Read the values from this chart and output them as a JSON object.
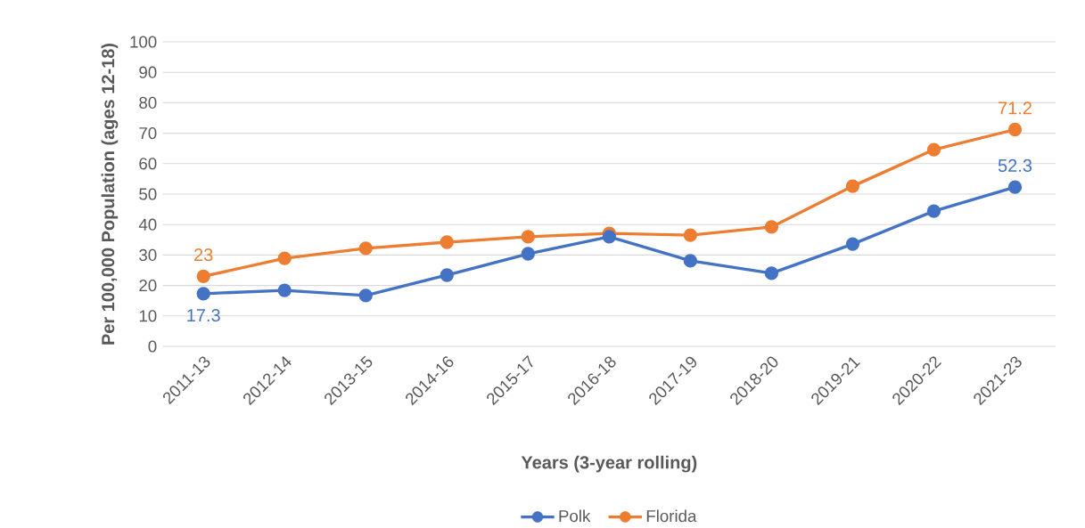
{
  "chart_data": {
    "type": "line",
    "xlabel": "Years (3-year rolling)",
    "ylabel": "Per 100,000 Population (ages 12-18)",
    "categories": [
      "2011-13",
      "2012-14",
      "2013-15",
      "2014-16",
      "2015-17",
      "2016-18",
      "2017-19",
      "2018-20",
      "2019-21",
      "2020-22",
      "2021-23"
    ],
    "series": [
      {
        "name": "Polk",
        "color": "#4472c4",
        "values": [
          17.3,
          18.4,
          16.7,
          23.4,
          30.4,
          36.0,
          28.1,
          24.0,
          33.6,
          44.4,
          52.3
        ],
        "value_labels": [
          "17.3",
          null,
          null,
          null,
          null,
          null,
          null,
          null,
          null,
          null,
          "52.3"
        ]
      },
      {
        "name": "Florida",
        "color": "#ed7d31",
        "values": [
          23,
          28.9,
          32.2,
          34.2,
          36.0,
          37.1,
          36.5,
          39.2,
          52.6,
          64.6,
          71.2
        ],
        "value_labels": [
          "23",
          null,
          null,
          null,
          null,
          null,
          null,
          null,
          null,
          null,
          "71.2"
        ]
      }
    ],
    "ylim": [
      0,
      100
    ],
    "yticks": [
      0,
      10,
      20,
      30,
      40,
      50,
      60,
      70,
      80,
      90,
      100
    ],
    "grid": "y",
    "legend": "bottom",
    "marker": "circle",
    "line_style": "solid"
  }
}
